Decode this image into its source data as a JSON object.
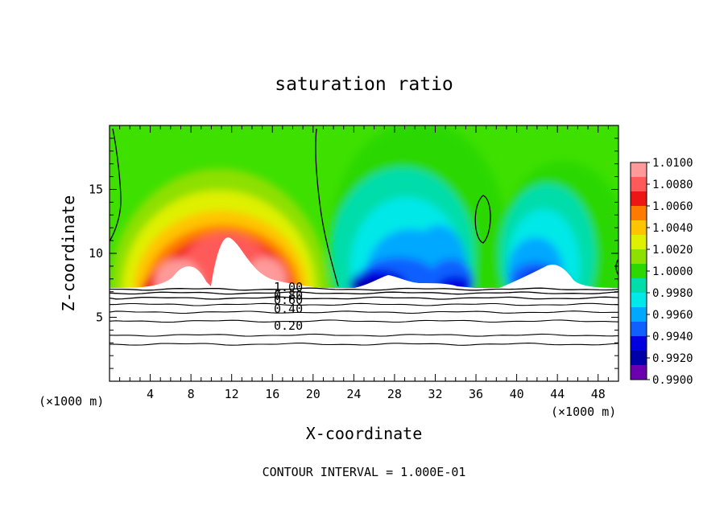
{
  "chart_data": {
    "type": "heatmap",
    "title": "saturation ratio",
    "xlabel": "X-coordinate",
    "ylabel": "Z-coordinate",
    "x_unit_left": "(×1000 m)",
    "x_unit_right": "(×1000 m)",
    "footer": "CONTOUR INTERVAL = 1.000E-01",
    "xlim": [
      0,
      50
    ],
    "ylim": [
      0,
      20
    ],
    "x_ticks": [
      4,
      8,
      12,
      16,
      20,
      24,
      28,
      32,
      36,
      40,
      44,
      48
    ],
    "y_ticks": [
      5,
      10,
      15
    ],
    "grid": false,
    "colorbar": {
      "levels": [
        "1.0100",
        "1.0080",
        "1.0060",
        "1.0040",
        "1.0020",
        "1.0000",
        "0.9980",
        "0.9960",
        "0.9940",
        "0.9920",
        "0.9900"
      ],
      "colors": [
        "#ff9a9a",
        "#ff5a5a",
        "#ee1515",
        "#ff7a00",
        "#ffc400",
        "#dff000",
        "#8ee000",
        "#2cd800",
        "#00ddaa",
        "#00e8e8",
        "#00a8ff",
        "#1060ff",
        "#0000e0",
        "#0000a8",
        "#6a00b0"
      ]
    },
    "contour_labels": [
      "1.00",
      "0.80",
      "0.60",
      "0.40",
      "0.20"
    ],
    "contour_levels_z": [
      7.2,
      6.9,
      6.5,
      6.0,
      5.4,
      4.7,
      3.6,
      2.9
    ],
    "fields": {
      "baseline": 1.0002,
      "left_warm_center_x": 12,
      "right_cool_centers_x": [
        28,
        33,
        44
      ]
    }
  }
}
